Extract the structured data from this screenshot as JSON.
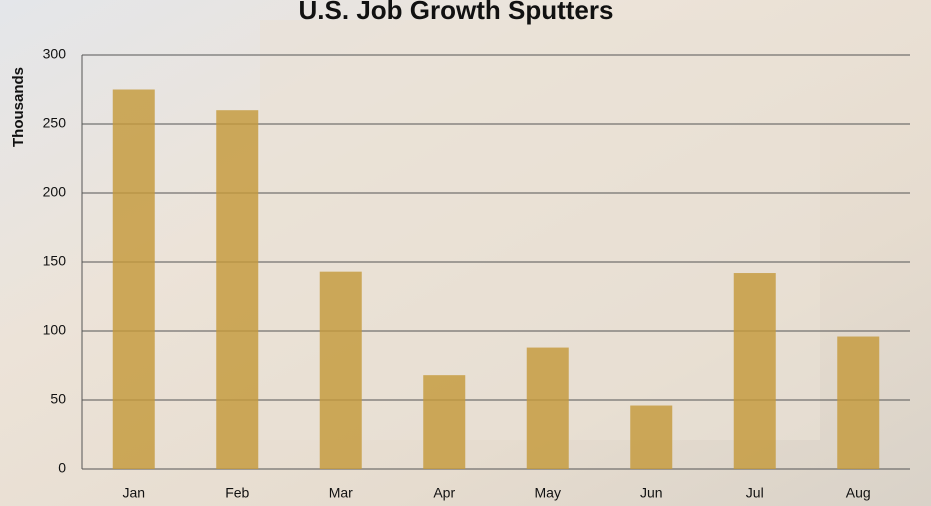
{
  "chart_data": {
    "type": "bar",
    "title": "U.S. Job Growth Sputters",
    "y_label": "Thousands",
    "categories": [
      "Jan",
      "Feb",
      "Mar",
      "Apr",
      "May",
      "Jun",
      "Jul",
      "Aug"
    ],
    "values": [
      275,
      260,
      143,
      68,
      88,
      46,
      142,
      96
    ],
    "color": "#c49a3c",
    "ylim": [
      0,
      300
    ],
    "yticks": [
      0,
      50,
      100,
      150,
      200,
      250,
      300
    ],
    "grid": true
  }
}
